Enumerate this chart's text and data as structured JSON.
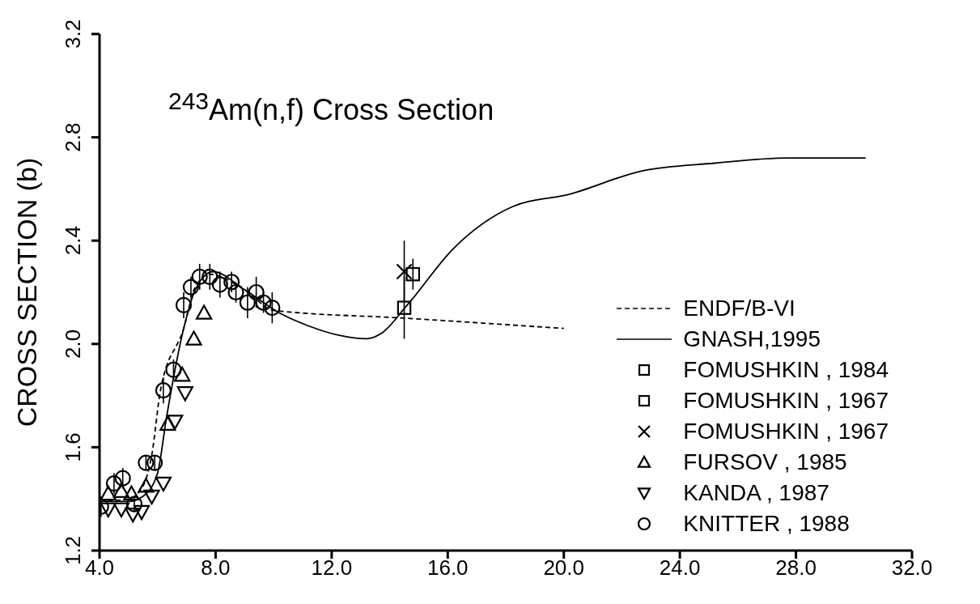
{
  "chart_data": {
    "type": "scatter",
    "title": "$^{243}$Am(n,f) Cross Section",
    "ylabel": "CROSS SECTION (b)",
    "xlim": [
      4,
      32
    ],
    "xticks": [
      {
        "value": 4,
        "label": "4.0"
      },
      {
        "value": 8,
        "label": "8.0"
      },
      {
        "value": 12,
        "label": "12.0"
      },
      {
        "value": 16,
        "label": "16.0"
      },
      {
        "value": 20,
        "label": "20.0"
      },
      {
        "value": 24,
        "label": "24.0"
      },
      {
        "value": 28,
        "label": "28.0"
      },
      {
        "value": 32,
        "label": "32.0"
      }
    ],
    "ylim": [
      1.2,
      3.2
    ],
    "yticks": [
      1.2,
      1.6,
      {
        "value": 2,
        "label": "2.0"
      },
      2.4,
      2.8,
      3.2
    ],
    "grid": false,
    "legend": "bottom right",
    "series": [
      {
        "name": "ENDF/B-VI",
        "type": "line",
        "line_style": "dashed",
        "color": "#000000",
        "x": [
          4.0,
          5.0,
          5.5,
          5.8,
          6.1,
          6.9,
          7.3,
          7.8,
          9.0,
          10.0,
          14.5,
          20.0
        ],
        "values": [
          1.39,
          1.4,
          1.45,
          1.57,
          1.82,
          2.06,
          2.22,
          2.27,
          2.21,
          2.13,
          2.1,
          2.06
        ]
      },
      {
        "name": "GNASH,1995",
        "type": "line",
        "line_style": "solid",
        "color": "#000000",
        "x": [
          4.0,
          5.0,
          5.5,
          6.0,
          6.3,
          6.9,
          7.3,
          7.9,
          9.0,
          10.2,
          11.2,
          12.4,
          13.2,
          13.7,
          14.6,
          16.2,
          18.2,
          20.2,
          22.7,
          25.2,
          27.7,
          30.4
        ],
        "values": [
          1.39,
          1.39,
          1.41,
          1.5,
          1.71,
          2.06,
          2.21,
          2.28,
          2.21,
          2.12,
          2.07,
          2.03,
          2.02,
          2.04,
          2.15,
          2.37,
          2.53,
          2.58,
          2.67,
          2.7,
          2.72,
          2.72
        ]
      },
      {
        "name": "FOMUSHKIN , 1984",
        "marker": "square",
        "color": "#000000",
        "x": [
          14.8
        ],
        "values": [
          2.27
        ],
        "errors": [
          0.06
        ]
      },
      {
        "name": "FOMUSHKIN , 1967",
        "marker": "square",
        "color": "#000000",
        "x": [
          14.5
        ],
        "values": [
          2.14
        ],
        "errors": [
          0.12
        ]
      },
      {
        "name": "FOMUSHKIN , 1967",
        "marker": "cross",
        "color": "#000000",
        "x": [
          14.5
        ],
        "values": [
          2.28
        ],
        "errors": [
          0.12
        ]
      },
      {
        "name": "FURSOV , 1985",
        "marker": "triangle",
        "color": "#000000",
        "x": [
          4.3,
          4.75,
          5.1,
          5.6,
          6.35,
          6.85,
          7.25,
          7.6
        ],
        "values": [
          1.42,
          1.43,
          1.42,
          1.45,
          1.69,
          1.88,
          2.02,
          2.12
        ]
      },
      {
        "name": "KANDA , 1987",
        "marker": "triangle-down",
        "color": "#000000",
        "x": [
          4.3,
          4.75,
          5.15,
          5.45,
          5.8,
          6.2,
          6.6,
          6.95
        ],
        "values": [
          1.36,
          1.36,
          1.34,
          1.35,
          1.41,
          1.46,
          1.7,
          1.81
        ]
      },
      {
        "name": "KNITTER , 1988",
        "marker": "circle",
        "color": "#000000",
        "x": [
          4.05,
          4.5,
          4.8,
          5.2,
          5.6,
          5.9,
          6.2,
          6.55,
          6.9,
          7.15,
          7.45,
          7.8,
          8.15,
          8.55,
          8.7,
          9.1,
          9.4,
          9.65,
          9.95
        ],
        "values": [
          1.37,
          1.46,
          1.48,
          1.38,
          1.54,
          1.54,
          1.82,
          1.9,
          2.15,
          2.22,
          2.26,
          2.26,
          2.23,
          2.24,
          2.2,
          2.16,
          2.2,
          2.16,
          2.14
        ],
        "errors": [
          0.04,
          0.04,
          0.04,
          0.03,
          0.03,
          0.03,
          0.05,
          0.04,
          0.05,
          0.04,
          0.05,
          0.05,
          0.05,
          0.04,
          0.04,
          0.06,
          0.06,
          0.04,
          0.06
        ]
      }
    ]
  }
}
